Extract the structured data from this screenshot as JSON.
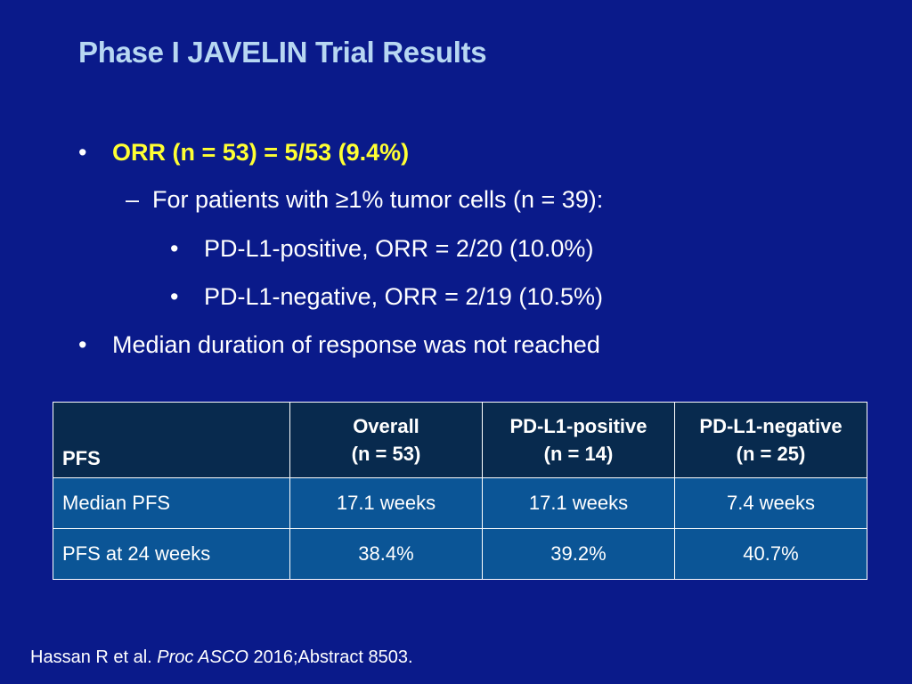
{
  "title": "Phase I JAVELIN Trial Results",
  "bullets": {
    "bullet_mark": "•",
    "dash_mark": "–",
    "orr": "ORR (n = 53) = 5/53 (9.4%)",
    "subgroup": "For patients with ≥1% tumor cells (n = 39):",
    "positive": "PD-L1-positive, ORR = 2/20 (10.0%)",
    "negative": "PD-L1-negative, ORR = 2/19 (10.5%)",
    "duration": "Median duration of response was not reached"
  },
  "table": {
    "corner": "PFS",
    "columns": [
      {
        "label": "Overall",
        "n": "(n = 53)"
      },
      {
        "label": "PD-L1-positive",
        "n": "(n = 14)"
      },
      {
        "label": "PD-L1-negative",
        "n": "(n = 25)"
      }
    ],
    "rows": [
      {
        "label": "Median PFS",
        "values": [
          "17.1 weeks",
          "17.1 weeks",
          "7.4 weeks"
        ]
      },
      {
        "label": "PFS at 24 weeks",
        "values": [
          "38.4%",
          "39.2%",
          "40.7%"
        ]
      }
    ]
  },
  "citation": {
    "authors": "Hassan R et al.",
    "journal": "Proc ASCO",
    "detail": "2016;Abstract 8503."
  },
  "colors": {
    "background": "#0a1a8a",
    "title": "#b7d7f2",
    "highlight": "#ffff33",
    "table_header": "#082a4e",
    "table_body": "#0b5596"
  }
}
